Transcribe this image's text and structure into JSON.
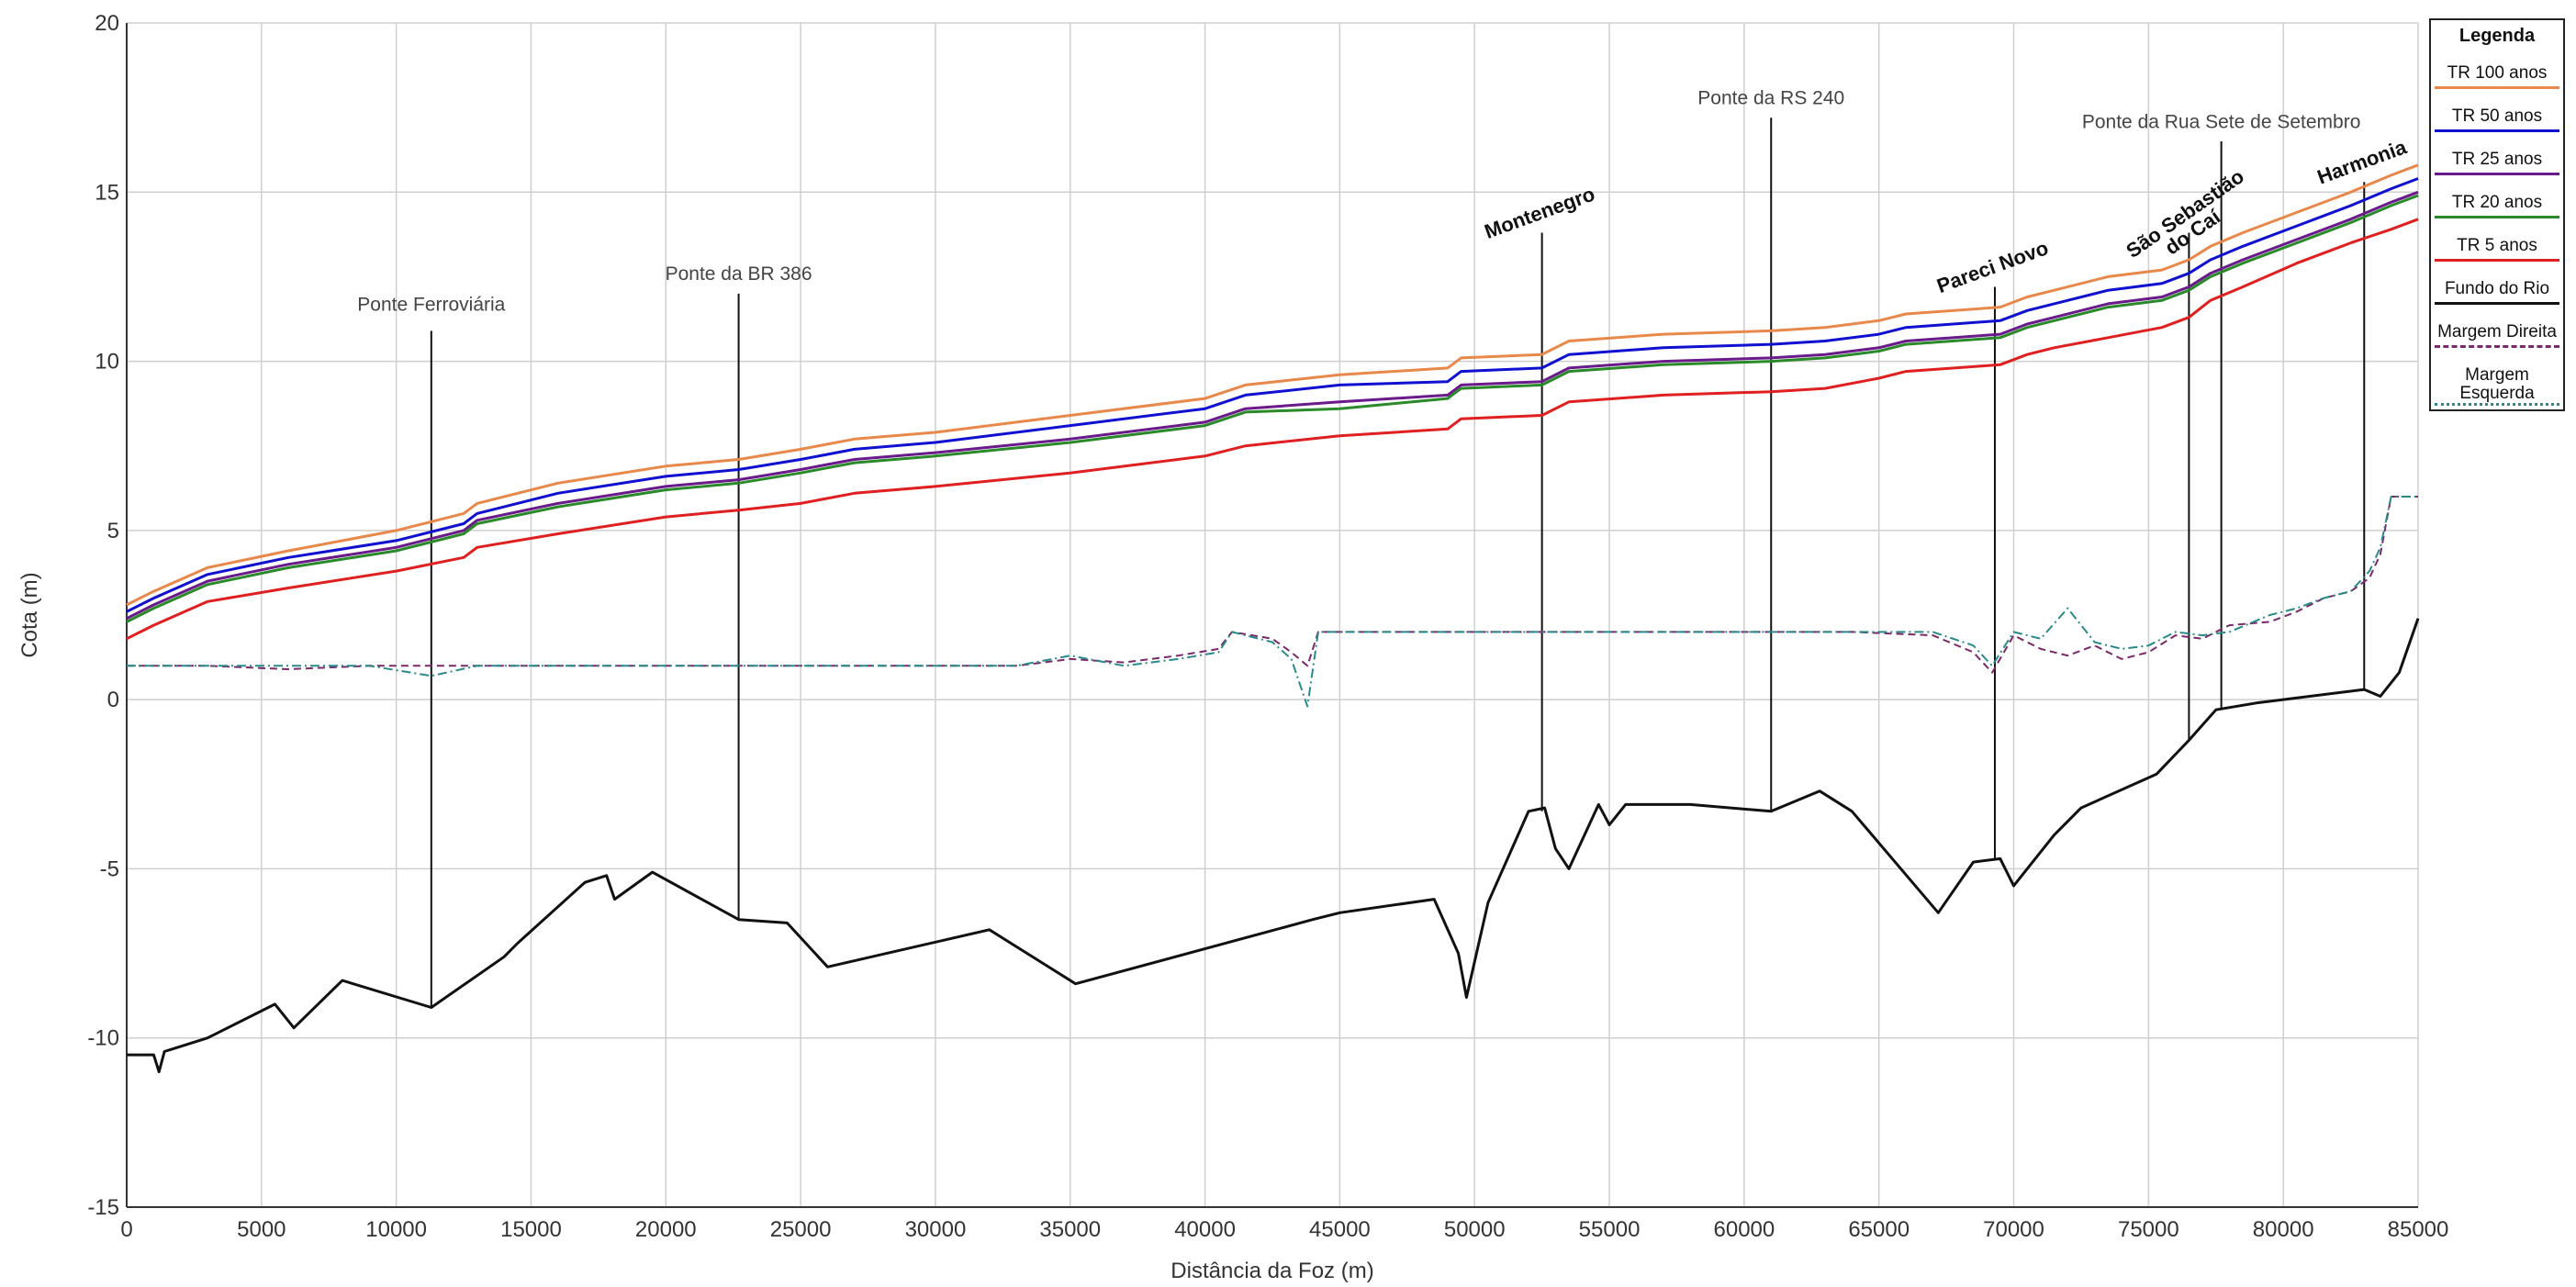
{
  "chart_data": {
    "type": "line",
    "xlabel": "Distância da Foz (m)",
    "ylabel": "Cota (m)",
    "xlim": [
      0,
      85000
    ],
    "ylim": [
      -15,
      20
    ],
    "xticks": [
      0,
      5000,
      10000,
      15000,
      20000,
      25000,
      30000,
      35000,
      40000,
      45000,
      50000,
      55000,
      60000,
      65000,
      70000,
      75000,
      80000,
      85000
    ],
    "yticks": [
      -15,
      -10,
      -5,
      0,
      5,
      10,
      15,
      20
    ],
    "grid": true,
    "legend": {
      "title": "Legenda",
      "position": "right"
    },
    "series": [
      {
        "name": "TR 100 anos",
        "color": "#e8884a",
        "style": "solid",
        "x": [
          0,
          1000,
          3000,
          6000,
          10000,
          12500,
          13000,
          16000,
          20000,
          22700,
          25000,
          27000,
          30000,
          35000,
          40000,
          41500,
          45000,
          49000,
          49500,
          52500,
          53500,
          57000,
          61000,
          63000,
          65000,
          66000,
          69500,
          70500,
          71500,
          73500,
          75500,
          76500,
          77300,
          78500,
          80500,
          82500,
          84000,
          85000
        ],
        "y": [
          2.8,
          3.2,
          3.9,
          4.4,
          5.0,
          5.5,
          5.8,
          6.4,
          6.9,
          7.1,
          7.4,
          7.7,
          7.9,
          8.4,
          8.9,
          9.3,
          9.6,
          9.8,
          10.1,
          10.2,
          10.6,
          10.8,
          10.9,
          11.0,
          11.2,
          11.4,
          11.6,
          11.9,
          12.1,
          12.5,
          12.7,
          13.0,
          13.4,
          13.8,
          14.4,
          15.0,
          15.5,
          15.8
        ]
      },
      {
        "name": "TR 50 anos",
        "color": "#1010d0",
        "style": "solid",
        "x": [
          0,
          1000,
          3000,
          6000,
          10000,
          12500,
          13000,
          16000,
          20000,
          22700,
          25000,
          27000,
          30000,
          35000,
          40000,
          41500,
          45000,
          49000,
          49500,
          52500,
          53500,
          57000,
          61000,
          63000,
          65000,
          66000,
          69500,
          70500,
          71500,
          73500,
          75500,
          76500,
          77300,
          78500,
          80500,
          82500,
          84000,
          85000
        ],
        "y": [
          2.6,
          3.0,
          3.7,
          4.2,
          4.7,
          5.2,
          5.5,
          6.1,
          6.6,
          6.8,
          7.1,
          7.4,
          7.6,
          8.1,
          8.6,
          9.0,
          9.3,
          9.4,
          9.7,
          9.8,
          10.2,
          10.4,
          10.5,
          10.6,
          10.8,
          11.0,
          11.2,
          11.5,
          11.7,
          12.1,
          12.3,
          12.6,
          13.0,
          13.4,
          14.0,
          14.6,
          15.1,
          15.4
        ]
      },
      {
        "name": "TR 25 anos",
        "color": "#6a1a8a",
        "style": "solid",
        "x": [
          0,
          1000,
          3000,
          6000,
          10000,
          12500,
          13000,
          16000,
          20000,
          22700,
          25000,
          27000,
          30000,
          35000,
          40000,
          41500,
          45000,
          49000,
          49500,
          52500,
          53500,
          57000,
          61000,
          63000,
          65000,
          66000,
          69500,
          70500,
          71500,
          73500,
          75500,
          76500,
          77300,
          78500,
          80500,
          82500,
          84000,
          85000
        ],
        "y": [
          2.4,
          2.8,
          3.5,
          4.0,
          4.5,
          5.0,
          5.3,
          5.8,
          6.3,
          6.5,
          6.8,
          7.1,
          7.3,
          7.7,
          8.2,
          8.6,
          8.8,
          9.0,
          9.3,
          9.4,
          9.8,
          10.0,
          10.1,
          10.2,
          10.4,
          10.6,
          10.8,
          11.1,
          11.3,
          11.7,
          11.9,
          12.2,
          12.6,
          13.0,
          13.6,
          14.2,
          14.7,
          15.0
        ]
      },
      {
        "name": "TR 20 anos",
        "color": "#2a8a2a",
        "style": "solid",
        "x": [
          0,
          1000,
          3000,
          6000,
          10000,
          12500,
          13000,
          16000,
          20000,
          22700,
          25000,
          27000,
          30000,
          35000,
          40000,
          41500,
          45000,
          49000,
          49500,
          52500,
          53500,
          57000,
          61000,
          63000,
          65000,
          66000,
          69500,
          70500,
          71500,
          73500,
          75500,
          76500,
          77300,
          78500,
          80500,
          82500,
          84000,
          85000
        ],
        "y": [
          2.3,
          2.7,
          3.4,
          3.9,
          4.4,
          4.9,
          5.2,
          5.7,
          6.2,
          6.4,
          6.7,
          7.0,
          7.2,
          7.6,
          8.1,
          8.5,
          8.6,
          8.9,
          9.2,
          9.3,
          9.7,
          9.9,
          10.0,
          10.1,
          10.3,
          10.5,
          10.7,
          11.0,
          11.2,
          11.6,
          11.8,
          12.1,
          12.5,
          12.9,
          13.5,
          14.1,
          14.6,
          14.9
        ]
      },
      {
        "name": "TR 5 anos",
        "color": "#e02020",
        "style": "solid",
        "x": [
          0,
          1000,
          3000,
          6000,
          10000,
          12500,
          13000,
          16000,
          20000,
          22700,
          25000,
          27000,
          30000,
          35000,
          40000,
          41500,
          45000,
          49000,
          49500,
          52500,
          53500,
          57000,
          61000,
          63000,
          65000,
          66000,
          69500,
          70500,
          71500,
          73500,
          75500,
          76500,
          77300,
          78500,
          80500,
          82500,
          84000,
          85000
        ],
        "y": [
          1.8,
          2.2,
          2.9,
          3.3,
          3.8,
          4.2,
          4.5,
          4.9,
          5.4,
          5.6,
          5.8,
          6.1,
          6.3,
          6.7,
          7.2,
          7.5,
          7.8,
          8.0,
          8.3,
          8.4,
          8.8,
          9.0,
          9.1,
          9.2,
          9.5,
          9.7,
          9.9,
          10.2,
          10.4,
          10.7,
          11.0,
          11.3,
          11.8,
          12.2,
          12.9,
          13.5,
          13.9,
          14.2
        ]
      },
      {
        "name": "Fundo do Rio",
        "color": "#111111",
        "style": "solid",
        "x": [
          0,
          1000,
          1200,
          1400,
          3000,
          5500,
          6200,
          8000,
          11300,
          14000,
          14500,
          17000,
          17800,
          18100,
          19500,
          22700,
          24500,
          26000,
          32000,
          35200,
          44000,
          45000,
          48500,
          49400,
          49700,
          50500,
          52000,
          52600,
          53000,
          53500,
          54600,
          55000,
          55600,
          58000,
          61000,
          62800,
          64000,
          67200,
          68500,
          69500,
          70000,
          71500,
          72500,
          75300,
          76500,
          77500,
          79000,
          83000,
          83600,
          84300,
          85000
        ],
        "y": [
          -10.5,
          -10.5,
          -11.0,
          -10.4,
          -10.0,
          -9.0,
          -9.7,
          -8.3,
          -9.1,
          -7.6,
          -7.2,
          -5.4,
          -5.2,
          -5.9,
          -5.1,
          -6.5,
          -6.6,
          -7.9,
          -6.8,
          -8.4,
          -6.5,
          -6.3,
          -5.9,
          -7.5,
          -8.8,
          -6.0,
          -3.3,
          -3.2,
          -4.4,
          -5.0,
          -3.1,
          -3.7,
          -3.1,
          -3.1,
          -3.3,
          -2.7,
          -3.3,
          -6.3,
          -4.8,
          -4.7,
          -5.5,
          -4.0,
          -3.2,
          -2.2,
          -1.2,
          -0.3,
          -0.1,
          0.3,
          0.1,
          0.8,
          2.4
        ]
      },
      {
        "name": "Margem Direita",
        "color": "#7a2a6a",
        "style": "dashed",
        "x": [
          0,
          3000,
          6000,
          9000,
          11300,
          13000,
          17000,
          20000,
          23000,
          26000,
          30000,
          33000,
          35000,
          37000,
          39000,
          40500,
          41000,
          42500,
          43200,
          43800,
          44200,
          45000,
          48000,
          50000,
          52500,
          55000,
          58000,
          61000,
          64000,
          67000,
          68500,
          69200,
          70000,
          71000,
          72000,
          73000,
          74000,
          75000,
          76000,
          77000,
          78000,
          79500,
          80500,
          81500,
          82500,
          83200,
          83600,
          84000,
          85000
        ],
        "y": [
          1.0,
          1.0,
          0.9,
          1.0,
          1.0,
          1.0,
          1.0,
          1.0,
          1.0,
          1.0,
          1.0,
          1.0,
          1.2,
          1.1,
          1.3,
          1.5,
          2.0,
          1.8,
          1.4,
          1.0,
          2.0,
          2.0,
          2.0,
          2.0,
          2.0,
          2.0,
          2.0,
          2.0,
          2.0,
          1.9,
          1.4,
          0.8,
          1.9,
          1.5,
          1.3,
          1.6,
          1.2,
          1.4,
          1.9,
          1.8,
          2.2,
          2.3,
          2.6,
          3.0,
          3.2,
          3.6,
          4.3,
          6.0,
          6.0
        ]
      },
      {
        "name": "Margem Esquerda",
        "color": "#2a8a8a",
        "style": "dashdot",
        "x": [
          0,
          3000,
          6000,
          9000,
          11300,
          13000,
          17000,
          20000,
          23000,
          26000,
          30000,
          33000,
          35000,
          37000,
          39000,
          40500,
          41000,
          42500,
          43200,
          43800,
          44200,
          45000,
          48000,
          50000,
          52500,
          55000,
          58000,
          61000,
          64000,
          67000,
          68500,
          69200,
          70000,
          71000,
          72000,
          73000,
          74000,
          75000,
          76000,
          77000,
          78000,
          79500,
          80500,
          81500,
          82500,
          83200,
          83600,
          84000,
          85000
        ],
        "y": [
          1.0,
          1.0,
          1.0,
          1.0,
          0.7,
          1.0,
          1.0,
          1.0,
          1.0,
          1.0,
          1.0,
          1.0,
          1.3,
          1.0,
          1.2,
          1.4,
          2.0,
          1.7,
          1.2,
          -0.2,
          2.0,
          2.0,
          2.0,
          2.0,
          2.0,
          2.0,
          2.0,
          2.0,
          2.0,
          2.0,
          1.6,
          1.0,
          2.0,
          1.8,
          2.7,
          1.7,
          1.5,
          1.6,
          2.0,
          1.9,
          2.0,
          2.5,
          2.7,
          3.0,
          3.2,
          3.8,
          4.5,
          6.0,
          6.0
        ]
      }
    ],
    "annotations": [
      {
        "label": "Ponte Ferroviária",
        "x": 11300,
        "y_top": 10.9,
        "y_bottom": -9.1,
        "bold": false,
        "rotation": 0,
        "text_y": 11.5
      },
      {
        "label": "Ponte da BR 386",
        "x": 22700,
        "y_top": 12.0,
        "y_bottom": -6.5,
        "bold": false,
        "rotation": 0,
        "text_y": 12.4
      },
      {
        "label": "Montenegro",
        "x": 52500,
        "y_top": 13.8,
        "y_bottom": -3.3,
        "bold": true,
        "rotation": -20,
        "text_y": 14.2
      },
      {
        "label": "Ponte da RS 240",
        "x": 61000,
        "y_top": 17.2,
        "y_bottom": -3.3,
        "bold": false,
        "rotation": 0,
        "text_y": 17.6
      },
      {
        "label": "Pareci Novo",
        "x": 69300,
        "y_top": 12.2,
        "y_bottom": -4.7,
        "bold": true,
        "rotation": -20,
        "text_y": 12.6
      },
      {
        "label": "São Sebastião",
        "label2": "do Caí",
        "x": 76500,
        "y_top": 13.8,
        "y_bottom": -1.2,
        "bold": true,
        "rotation": -35,
        "text_y": 14.2
      },
      {
        "label": "Ponte da Rua Sete de Setembro",
        "x": 77700,
        "y_top": 16.5,
        "y_bottom": -0.3,
        "bold": false,
        "rotation": 0,
        "text_y": 16.9
      },
      {
        "label": "Harmonia",
        "x": 83000,
        "y_top": 15.3,
        "y_bottom": 0.3,
        "bold": true,
        "rotation": -20,
        "text_y": 15.7
      }
    ]
  }
}
